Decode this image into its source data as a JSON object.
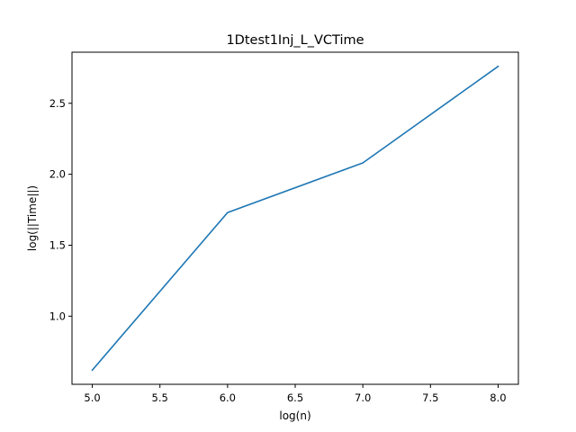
{
  "chart_data": {
    "type": "line",
    "title": "1Dtest1Inj_L_VCTime",
    "xlabel": "log(n)",
    "ylabel": "log(||Time||)",
    "xlim": [
      4.85,
      8.15
    ],
    "ylim": [
      0.52,
      2.86
    ],
    "xticks": [
      5.0,
      5.5,
      6.0,
      6.5,
      7.0,
      7.5,
      8.0
    ],
    "xtick_labels": [
      "5.0",
      "5.5",
      "6.0",
      "6.5",
      "7.0",
      "7.5",
      "8.0"
    ],
    "yticks": [
      1.0,
      1.5,
      2.0,
      2.5
    ],
    "ytick_labels": [
      "1.0",
      "1.5",
      "2.0",
      "2.5"
    ],
    "grid": false,
    "legend": "none",
    "series": [
      {
        "x": [
          5.0,
          6.0,
          7.0,
          8.0
        ],
        "y": [
          0.62,
          1.73,
          2.08,
          2.76
        ],
        "color": "#1f77b4"
      }
    ]
  }
}
